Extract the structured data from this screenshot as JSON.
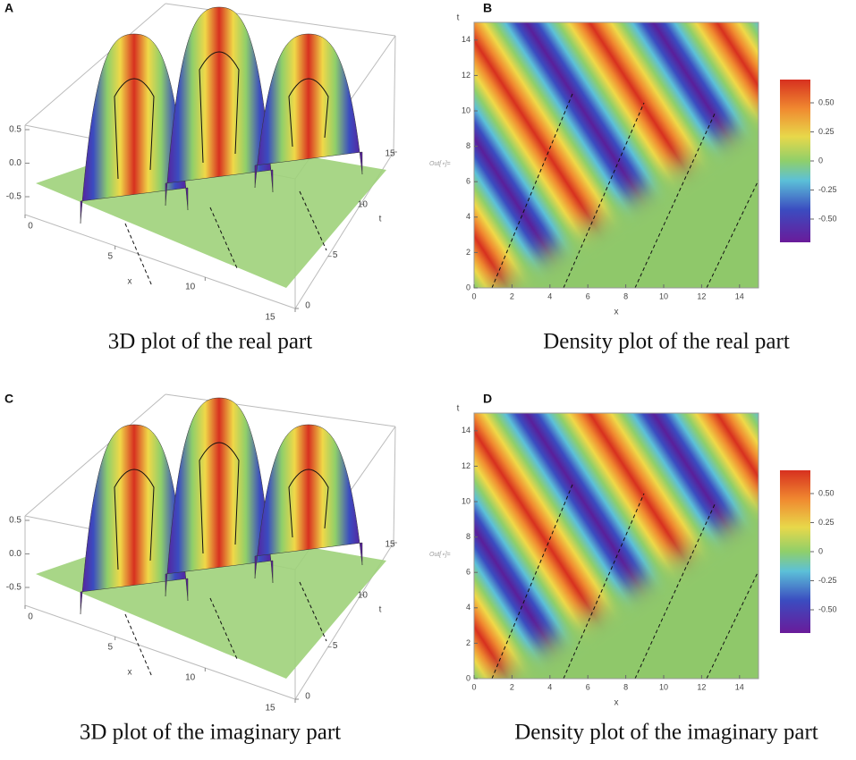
{
  "chart_data": [
    {
      "type": "surface3d",
      "panel": "A",
      "caption": "3D plot of the real part",
      "xlabel": "x",
      "ylabel": "t",
      "xlim": [
        0,
        15
      ],
      "ylim": [
        0,
        15
      ],
      "zlim": [
        -0.7,
        0.7
      ],
      "xticks": [
        0,
        5,
        10,
        15
      ],
      "yticks": [
        0,
        5,
        10,
        15
      ],
      "zticks": [
        0.5,
        {
          "value": 0,
          "label": "0.0"
        },
        -0.5
      ]
    },
    {
      "type": "density",
      "panel": "B",
      "caption": "Density plot of the real part",
      "xlabel": "x",
      "ylabel": "t",
      "prompt": "Out[∘]=",
      "xlim": [
        0,
        15
      ],
      "ylim": [
        0,
        15
      ],
      "xticks": [
        0,
        2,
        4,
        6,
        8,
        10,
        12,
        14
      ],
      "yticks": [
        0,
        2,
        4,
        6,
        8,
        10,
        12,
        14
      ],
      "colorbar_lim": [
        -0.7,
        0.7
      ],
      "colorbar_ticks": [
        {
          "value": 0.5,
          "label": "0.50"
        },
        0.25,
        0,
        -0.25,
        {
          "value": -0.5,
          "label": "-0.50"
        }
      ]
    },
    {
      "type": "surface3d",
      "panel": "C",
      "caption": "3D plot of the imaginary part",
      "xlabel": "x",
      "ylabel": "t",
      "xlim": [
        0,
        15
      ],
      "ylim": [
        0,
        15
      ],
      "zlim": [
        -0.7,
        0.7
      ],
      "xticks": [
        0,
        5,
        10,
        15
      ],
      "yticks": [
        0,
        5,
        10,
        15
      ],
      "zticks": [
        0.5,
        {
          "value": 0,
          "label": "0.0"
        },
        -0.5
      ]
    },
    {
      "type": "density",
      "panel": "D",
      "caption": "Density plot of the imaginary part",
      "xlabel": "x",
      "ylabel": "t",
      "prompt": "Out[∘]=",
      "xlim": [
        0,
        15
      ],
      "ylim": [
        0,
        15
      ],
      "xticks": [
        0,
        2,
        4,
        6,
        8,
        10,
        12,
        14
      ],
      "yticks": [
        0,
        2,
        4,
        6,
        8,
        10,
        12,
        14
      ],
      "colorbar_lim": [
        -0.7,
        0.7
      ],
      "colorbar_ticks": [
        {
          "value": 0.5,
          "label": "0.50"
        },
        0.25,
        0,
        -0.25,
        {
          "value": -0.5,
          "label": "-0.50"
        }
      ]
    }
  ]
}
